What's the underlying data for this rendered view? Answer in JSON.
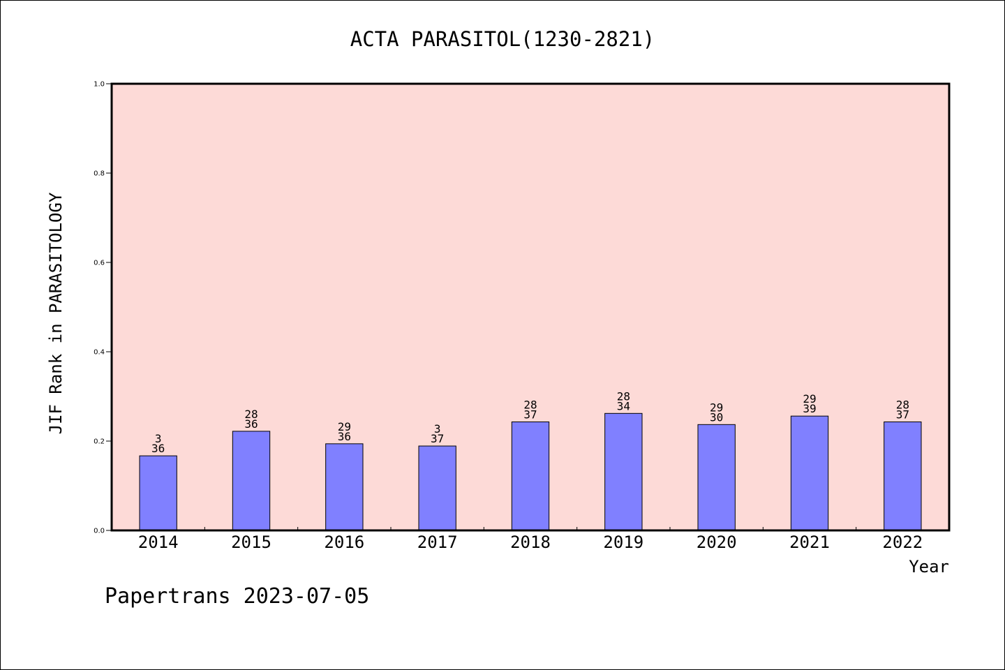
{
  "chart_data": {
    "type": "bar",
    "title": "ACTA PARASITOL(1230-2821)",
    "xlabel": "Year",
    "ylabel": "JIF Rank in PARASITOLOGY",
    "categories": [
      "2014",
      "2015",
      "2016",
      "2017",
      "2018",
      "2019",
      "2020",
      "2021",
      "2022"
    ],
    "values": [
      0.167,
      0.222,
      0.194,
      0.189,
      0.243,
      0.262,
      0.237,
      0.256,
      0.243
    ],
    "bar_labels_top": [
      "3",
      "28",
      "29",
      "3",
      "28",
      "28",
      "29",
      "29",
      "28"
    ],
    "bar_labels_bottom": [
      "36",
      "36",
      "36",
      "37",
      "37",
      "34",
      "30",
      "39",
      "37"
    ],
    "ylim": [
      0,
      1
    ],
    "yticks": [
      0,
      0.2,
      0.4,
      0.6,
      0.8,
      1.0
    ],
    "ytick_labels": [
      "0.0",
      "0.2",
      "0.4",
      "0.6",
      "0.8",
      "1.0"
    ],
    "grid": false,
    "colors": {
      "bar": "#8080FF",
      "bar_edge": "#000000",
      "plot_background": "#FDDAD7"
    }
  },
  "footer": "Papertrans 2023-07-05"
}
